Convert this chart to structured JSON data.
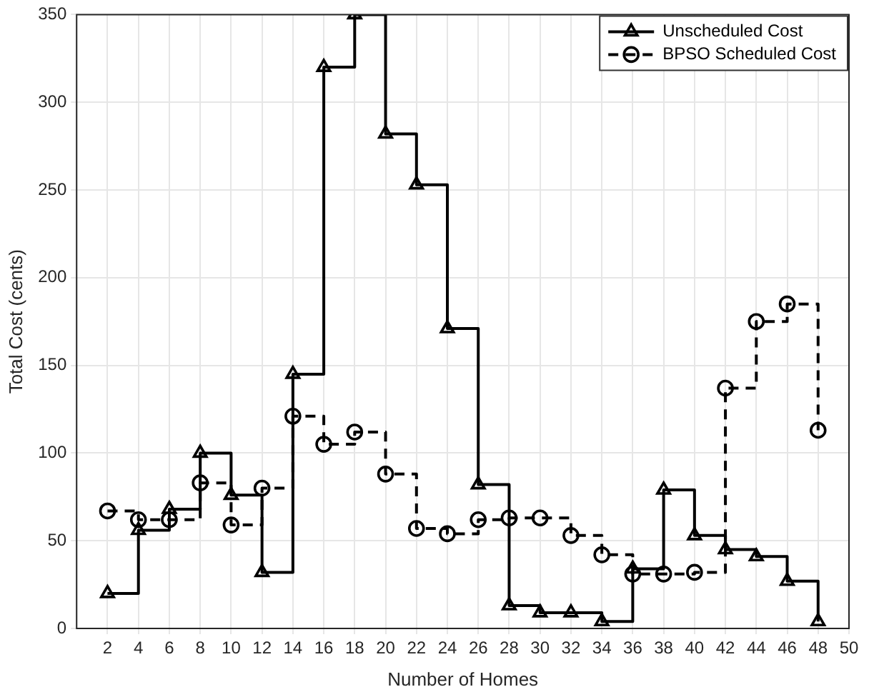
{
  "chart_data": {
    "type": "step",
    "xlabel": "Number of Homes",
    "ylabel": "Total Cost (cents)",
    "x": [
      2,
      4,
      6,
      8,
      10,
      12,
      14,
      16,
      18,
      20,
      22,
      24,
      26,
      28,
      30,
      32,
      34,
      36,
      38,
      40,
      42,
      44,
      46,
      48
    ],
    "series": [
      {
        "name": "Unscheduled Cost",
        "color": "#000000",
        "marker": "triangle",
        "line_style": "solid",
        "values": [
          20,
          56,
          68,
          100,
          76,
          32,
          145,
          320,
          350,
          282,
          253,
          171,
          82,
          13,
          9,
          9,
          4,
          34,
          79,
          53,
          45,
          41,
          27,
          4
        ]
      },
      {
        "name": "BPSO Scheduled Cost",
        "color": "#000000",
        "marker": "circle",
        "line_style": "dashed",
        "values": [
          67,
          62,
          62,
          83,
          59,
          80,
          121,
          105,
          112,
          88,
          57,
          54,
          62,
          63,
          63,
          53,
          42,
          31,
          31,
          32,
          137,
          175,
          185,
          113
        ]
      }
    ],
    "xlim": [
      0,
      50
    ],
    "xticks": [
      2,
      4,
      6,
      8,
      10,
      12,
      14,
      16,
      18,
      20,
      22,
      24,
      26,
      28,
      30,
      32,
      34,
      36,
      38,
      40,
      42,
      44,
      46,
      48,
      50
    ],
    "ylim": [
      0,
      350
    ],
    "yticks": [
      0,
      50,
      100,
      150,
      200,
      250,
      300,
      350
    ],
    "grid": true,
    "legend": "top right"
  }
}
